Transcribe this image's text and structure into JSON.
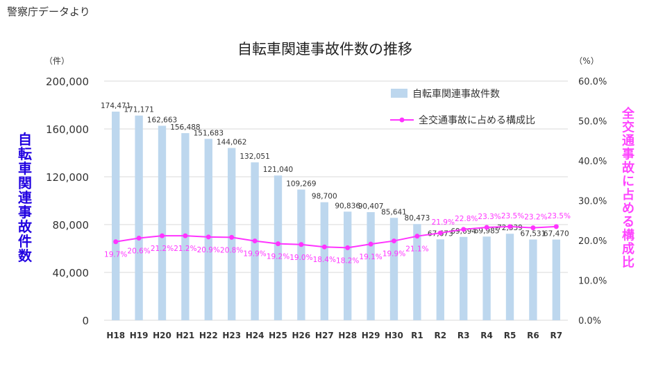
{
  "source_note": "警察庁データより",
  "colors": {
    "bar": "#bdd7ee",
    "line": "#ff33ff",
    "line_label": "#ff33ff",
    "left_title": "#2000e0",
    "right_title": "#ff44ff",
    "grid": "#d9d9d9",
    "text": "#333333"
  },
  "chart_data": {
    "type": "bar",
    "title": "自転車関連事故件数の推移",
    "categories": [
      "H18",
      "H19",
      "H20",
      "H21",
      "H22",
      "H23",
      "H24",
      "H25",
      "H26",
      "H27",
      "H28",
      "H29",
      "H30",
      "R1",
      "R2",
      "R3",
      "R4",
      "R5",
      "R6",
      "R7"
    ],
    "y_left": {
      "title": "自転車関連事故件数",
      "unit": "（件）",
      "range": [
        0,
        200000
      ],
      "ticks": [
        "0",
        "40,000",
        "80,000",
        "120,000",
        "160,000",
        "200,000"
      ]
    },
    "y_right": {
      "title": "全交通事故に占める構成比",
      "unit": "（%）",
      "range": [
        0,
        60
      ],
      "ticks": [
        "0.0%",
        "10.0%",
        "20.0%",
        "30.0%",
        "40.0%",
        "50.0%",
        "60.0%"
      ]
    },
    "legend": {
      "placement": "top-right"
    },
    "series": [
      {
        "name": "自転車関連事故件数",
        "type": "bar",
        "axis": "left",
        "values": [
          174471,
          171171,
          162663,
          156488,
          151683,
          144062,
          132051,
          121040,
          109269,
          98700,
          90836,
          90407,
          85641,
          80473,
          67673,
          69694,
          69985,
          72339,
          67531,
          67470
        ],
        "labels": [
          "174,471",
          "171,171",
          "162,663",
          "156,488",
          "151,683",
          "144,062",
          "132,051",
          "121,040",
          "109,269",
          "98,700",
          "90,836",
          "90,407",
          "85,641",
          "80,473",
          "67,673",
          "69,694",
          "69,985",
          "72,339",
          "67,531",
          "67,470"
        ]
      },
      {
        "name": "全交通事故に占める構成比",
        "type": "line",
        "axis": "right",
        "values": [
          19.7,
          20.6,
          21.2,
          21.2,
          20.9,
          20.8,
          19.9,
          19.2,
          19.0,
          18.4,
          18.2,
          19.1,
          19.9,
          21.1,
          21.9,
          22.8,
          23.3,
          23.5,
          23.2,
          23.5
        ],
        "labels": [
          "19.7%",
          "20.6%",
          "21.2%",
          "21.2%",
          "20.9%",
          "20.8%",
          "19.9%",
          "19.2%",
          "19.0%",
          "18.4%",
          "18.2%",
          "19.1%",
          "19.9%",
          "21.1%",
          "21.9%",
          "22.8%",
          "23.3%",
          "23.5%",
          "23.2%",
          "23.5%"
        ]
      }
    ]
  }
}
